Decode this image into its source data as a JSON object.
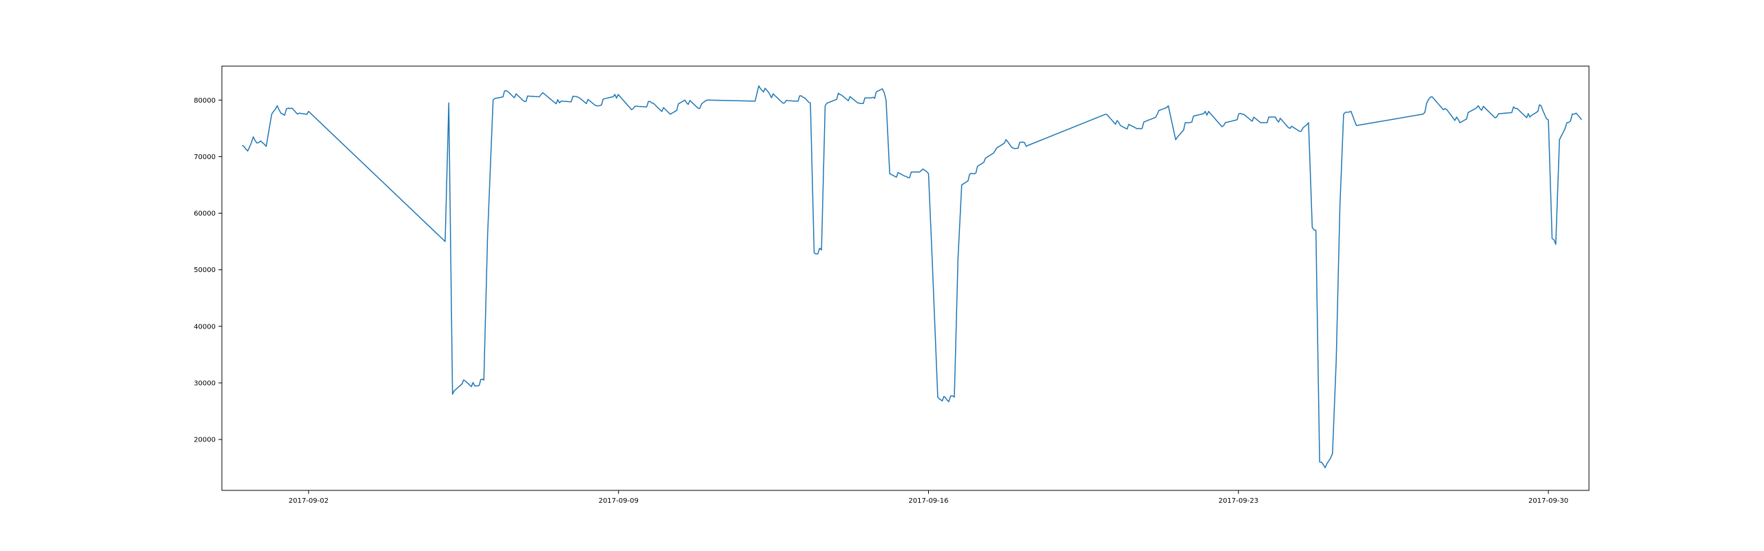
{
  "chart_data": {
    "type": "line",
    "title": "",
    "xlabel": "",
    "ylabel": "",
    "x_axis_type": "date",
    "xlim": [
      "2017-08-31T01:00",
      "2017-09-30T22:00"
    ],
    "ylim": [
      11000,
      86000
    ],
    "grid": false,
    "x_ticks": [
      {
        "value": "2017-09-02T00:00",
        "label": "2017-09-02"
      },
      {
        "value": "2017-09-09T00:00",
        "label": "2017-09-09"
      },
      {
        "value": "2017-09-16T00:00",
        "label": "2017-09-16"
      },
      {
        "value": "2017-09-23T00:00",
        "label": "2017-09-23"
      },
      {
        "value": "2017-09-30T00:00",
        "label": "2017-09-30"
      }
    ],
    "y_ticks": [
      {
        "value": 20000,
        "label": "20000"
      },
      {
        "value": 30000,
        "label": "30000"
      },
      {
        "value": 40000,
        "label": "40000"
      },
      {
        "value": 50000,
        "label": "50000"
      },
      {
        "value": 60000,
        "label": "60000"
      },
      {
        "value": 70000,
        "label": "70000"
      },
      {
        "value": 80000,
        "label": "80000"
      }
    ],
    "series": [
      {
        "color": "#1f77b4",
        "points": [
          [
            "2017-08-31T12:00",
            72000
          ],
          [
            "2017-08-31T15:00",
            71000
          ],
          [
            "2017-08-31T18:00",
            73500
          ],
          [
            "2017-08-31T21:00",
            72500
          ],
          [
            "2017-09-01T01:00",
            71800
          ],
          [
            "2017-09-01T04:00",
            77500
          ],
          [
            "2017-09-01T07:00",
            79000
          ],
          [
            "2017-09-01T10:00",
            77500
          ],
          [
            "2017-09-01T14:00",
            78500
          ],
          [
            "2017-09-01T18:00",
            77500
          ],
          [
            "2017-09-02T00:00",
            78000
          ],
          [
            "2017-09-05T02:00",
            55000
          ],
          [
            "2017-09-05T04:00",
            79500
          ],
          [
            "2017-09-05T06:00",
            28000
          ],
          [
            "2017-09-05T12:00",
            30500
          ],
          [
            "2017-09-05T18:00",
            29500
          ],
          [
            "2017-09-05T23:00",
            30500
          ],
          [
            "2017-09-06T01:00",
            56000
          ],
          [
            "2017-09-06T04:00",
            80000
          ],
          [
            "2017-09-06T12:00",
            81500
          ],
          [
            "2017-09-06T20:00",
            80000
          ],
          [
            "2017-09-07T06:00",
            81000
          ],
          [
            "2017-09-07T16:00",
            79500
          ],
          [
            "2017-09-08T02:00",
            80500
          ],
          [
            "2017-09-08T12:00",
            79000
          ],
          [
            "2017-09-08T22:00",
            81000
          ],
          [
            "2017-09-09T08:00",
            78500
          ],
          [
            "2017-09-09T18:00",
            79500
          ],
          [
            "2017-09-10T04:00",
            77500
          ],
          [
            "2017-09-10T12:00",
            80000
          ],
          [
            "2017-09-10T20:00",
            78500
          ],
          [
            "2017-09-11T00:00",
            80000
          ],
          [
            "2017-09-12T02:00",
            79800
          ],
          [
            "2017-09-12T04:00",
            82500
          ],
          [
            "2017-09-12T10:00",
            81000
          ],
          [
            "2017-09-12T18:00",
            79500
          ],
          [
            "2017-09-13T04:00",
            80500
          ],
          [
            "2017-09-13T08:00",
            79500
          ],
          [
            "2017-09-13T10:00",
            53000
          ],
          [
            "2017-09-13T14:00",
            53500
          ],
          [
            "2017-09-13T16:00",
            79000
          ],
          [
            "2017-09-14T00:00",
            81000
          ],
          [
            "2017-09-14T10:00",
            79500
          ],
          [
            "2017-09-14T18:00",
            80500
          ],
          [
            "2017-09-14T23:00",
            82000
          ],
          [
            "2017-09-15T01:00",
            80000
          ],
          [
            "2017-09-15T03:00",
            67000
          ],
          [
            "2017-09-15T12:00",
            66500
          ],
          [
            "2017-09-15T20:00",
            67500
          ],
          [
            "2017-09-16T00:00",
            67000
          ],
          [
            "2017-09-16T02:00",
            52000
          ],
          [
            "2017-09-16T05:00",
            27500
          ],
          [
            "2017-09-16T10:00",
            27000
          ],
          [
            "2017-09-16T14:00",
            27500
          ],
          [
            "2017-09-16T16:00",
            52000
          ],
          [
            "2017-09-16T18:00",
            65000
          ],
          [
            "2017-09-17T00:00",
            67000
          ],
          [
            "2017-09-17T06:00",
            69000
          ],
          [
            "2017-09-17T12:00",
            71000
          ],
          [
            "2017-09-17T18:00",
            73000
          ],
          [
            "2017-09-17T22:00",
            71500
          ],
          [
            "2017-09-18T04:00",
            72500
          ],
          [
            "2017-09-18T06:00",
            72000
          ],
          [
            "2017-09-20T00:00",
            77500
          ],
          [
            "2017-09-20T08:00",
            75500
          ],
          [
            "2017-09-20T18:00",
            75000
          ],
          [
            "2017-09-21T04:00",
            77500
          ],
          [
            "2017-09-21T10:00",
            79000
          ],
          [
            "2017-09-21T14:00",
            73000
          ],
          [
            "2017-09-21T20:00",
            76000
          ],
          [
            "2017-09-22T06:00",
            78000
          ],
          [
            "2017-09-22T16:00",
            75500
          ],
          [
            "2017-09-23T02:00",
            77500
          ],
          [
            "2017-09-23T12:00",
            76000
          ],
          [
            "2017-09-23T20:00",
            77000
          ],
          [
            "2017-09-24T04:00",
            75000
          ],
          [
            "2017-09-24T10:00",
            74500
          ],
          [
            "2017-09-24T14:00",
            76000
          ],
          [
            "2017-09-24T16:00",
            57500
          ],
          [
            "2017-09-24T18:00",
            57000
          ],
          [
            "2017-09-24T20:00",
            16000
          ],
          [
            "2017-09-24T23:00",
            15000
          ],
          [
            "2017-09-25T03:00",
            17500
          ],
          [
            "2017-09-25T05:00",
            34000
          ],
          [
            "2017-09-25T07:00",
            61000
          ],
          [
            "2017-09-25T09:00",
            77500
          ],
          [
            "2017-09-25T13:00",
            78000
          ],
          [
            "2017-09-25T16:00",
            75500
          ],
          [
            "2017-09-27T04:00",
            77500
          ],
          [
            "2017-09-27T08:00",
            80500
          ],
          [
            "2017-09-27T16:00",
            78500
          ],
          [
            "2017-09-28T00:00",
            76000
          ],
          [
            "2017-09-28T10:00",
            79000
          ],
          [
            "2017-09-28T20:00",
            77000
          ],
          [
            "2017-09-29T06:00",
            78500
          ],
          [
            "2017-09-29T14:00",
            77000
          ],
          [
            "2017-09-29T20:00",
            79000
          ],
          [
            "2017-09-30T00:00",
            76500
          ],
          [
            "2017-09-30T02:00",
            55500
          ],
          [
            "2017-09-30T04:00",
            54500
          ],
          [
            "2017-09-30T06:00",
            73000
          ],
          [
            "2017-09-30T10:00",
            76000
          ],
          [
            "2017-09-30T14:00",
            77500
          ],
          [
            "2017-09-30T18:00",
            76500
          ]
        ]
      }
    ]
  }
}
